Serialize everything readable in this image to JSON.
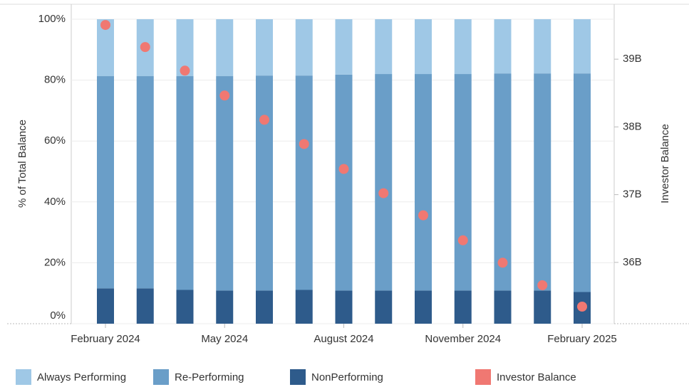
{
  "chart_data": {
    "type": "bar",
    "stacked": true,
    "categories": [
      "February 2024",
      null,
      null,
      "May 2024",
      null,
      null,
      "August 2024",
      null,
      null,
      "November 2024",
      null,
      null,
      "February 2025"
    ],
    "series": [
      {
        "name": "NonPerforming",
        "color": "#2e5b8b",
        "values": [
          11.6,
          11.6,
          11.1,
          10.9,
          10.9,
          11.1,
          10.9,
          10.9,
          10.9,
          10.9,
          10.9,
          10.9,
          10.4
        ]
      },
      {
        "name": "Re-Performing",
        "color": "#6a9ec8",
        "values": [
          69.7,
          69.7,
          70.2,
          70.4,
          70.6,
          70.4,
          70.9,
          71.1,
          71.1,
          71.1,
          71.3,
          71.3,
          71.8
        ]
      },
      {
        "name": "Always Performing",
        "color": "#9fc8e6",
        "values": [
          18.7,
          18.7,
          18.7,
          18.7,
          18.5,
          18.5,
          18.2,
          18.0,
          18.0,
          18.0,
          17.8,
          17.8,
          17.8
        ]
      },
      {
        "name": "Investor Balance",
        "type": "scatter",
        "axis": "y2",
        "color": "#f07872",
        "values": [
          39.505,
          39.179,
          38.831,
          38.463,
          38.105,
          37.747,
          37.379,
          37.021,
          36.695,
          36.326,
          35.995,
          35.663,
          35.347
        ]
      }
    ],
    "ylabel": "% of Total Balance",
    "y2label": "Investor Balance",
    "ylim": [
      0,
      100
    ],
    "yticks": [
      {
        "value": 0,
        "label": "0%"
      },
      {
        "value": 20,
        "label": "20%"
      },
      {
        "value": 40,
        "label": "40%"
      },
      {
        "value": 60,
        "label": "60%"
      },
      {
        "value": 80,
        "label": "80%"
      },
      {
        "value": 100,
        "label": "100%"
      }
    ],
    "y2lim": [
      35.095,
      39.59
    ],
    "y2ticks": [
      {
        "value": 36,
        "label": "36B"
      },
      {
        "value": 37,
        "label": "37B"
      },
      {
        "value": 38,
        "label": "38B"
      },
      {
        "value": 39,
        "label": "39B"
      }
    ],
    "legend": "bottom",
    "grid": true
  }
}
